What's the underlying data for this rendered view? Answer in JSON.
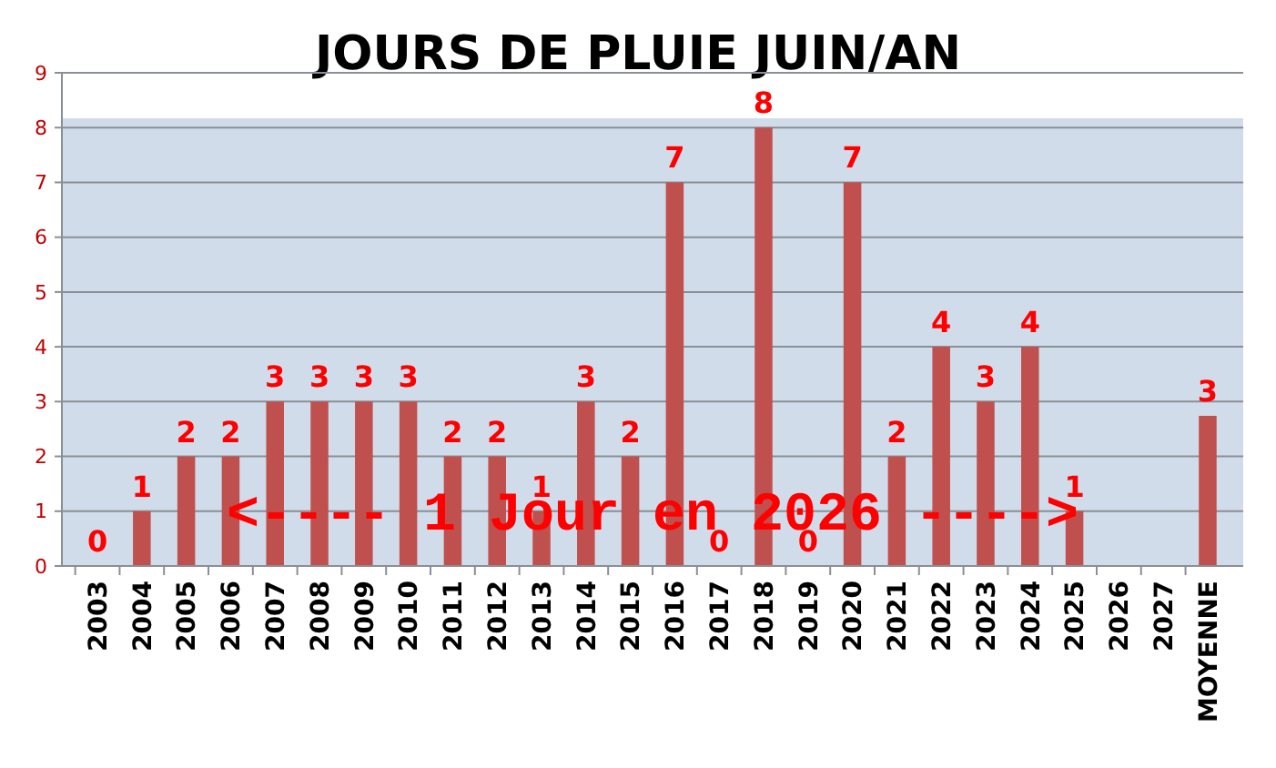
{
  "chart_data": {
    "type": "bar",
    "title": "JOURS DE PLUIE JUIN/AN",
    "categories": [
      "2003",
      "2004",
      "2005",
      "2006",
      "2007",
      "2008",
      "2009",
      "2010",
      "2011",
      "2012",
      "2013",
      "2014",
      "2015",
      "2016",
      "2017",
      "2018",
      "2019",
      "2020",
      "2021",
      "2022",
      "2023",
      "2024",
      "2025",
      "2026",
      "2027",
      "MOYENNE"
    ],
    "values": [
      0,
      1,
      2,
      2,
      3,
      3,
      3,
      3,
      2,
      2,
      1,
      3,
      2,
      7,
      0,
      8,
      0,
      7,
      2,
      4,
      3,
      4,
      1,
      null,
      null,
      2.74
    ],
    "value_labels": [
      "0",
      "1",
      "2",
      "2",
      "3",
      "3",
      "3",
      "3",
      "2",
      "2",
      "1",
      "3",
      "2",
      "7",
      "0",
      "8",
      "0",
      "7",
      "2",
      "4",
      "3",
      "4",
      "1",
      null,
      null,
      "3"
    ],
    "color": "#c0504d",
    "ylim": [
      0,
      9
    ],
    "yticks": [
      0,
      1,
      2,
      3,
      4,
      5,
      6,
      7,
      8,
      9
    ],
    "grid": "y",
    "annotations": [
      "<---- 1 Jour en 2026 ---->"
    ]
  }
}
